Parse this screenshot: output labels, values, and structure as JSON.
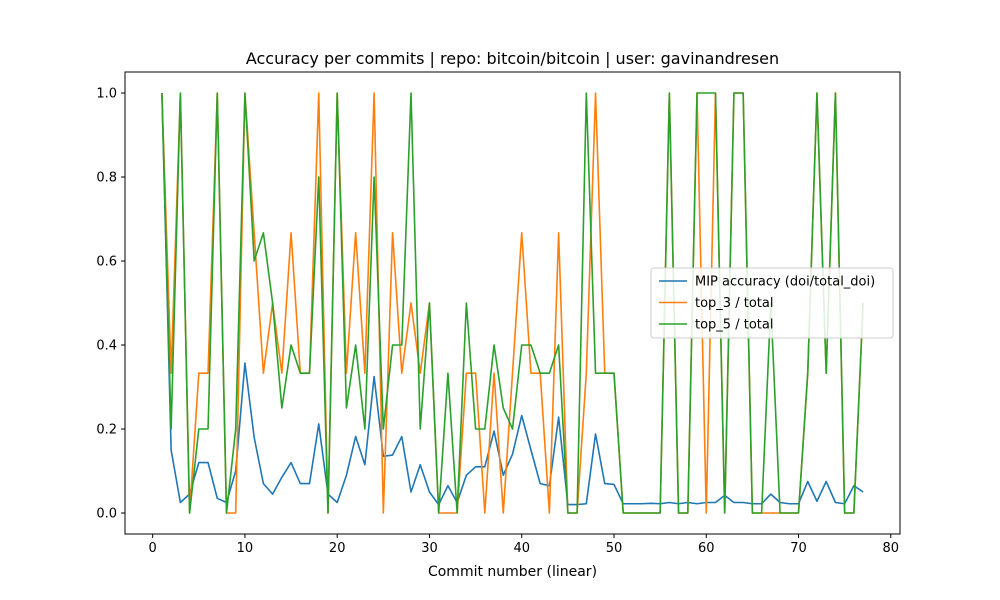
{
  "chart_data": {
    "type": "line",
    "title": "Accuracy per commits | repo: bitcoin/bitcoin | user: gavinandresen",
    "xlabel": "Commit number (linear)",
    "ylabel": "",
    "xlim": [
      -3,
      81
    ],
    "ylim": [
      -0.05,
      1.05
    ],
    "xticks": [
      0,
      10,
      20,
      30,
      40,
      50,
      60,
      70,
      80
    ],
    "yticks": [
      0.0,
      0.2,
      0.4,
      0.6,
      0.8,
      1.0
    ],
    "xtick_labels": [
      "0",
      "10",
      "20",
      "30",
      "40",
      "50",
      "60",
      "70",
      "80"
    ],
    "ytick_labels": [
      "0.0",
      "0.2",
      "0.4",
      "0.6",
      "0.8",
      "1.0"
    ],
    "grid": false,
    "legend_position": "center-right",
    "x": [
      1,
      2,
      3,
      4,
      5,
      6,
      7,
      8,
      9,
      10,
      11,
      12,
      13,
      14,
      15,
      16,
      17,
      18,
      19,
      20,
      21,
      22,
      23,
      24,
      25,
      26,
      27,
      28,
      29,
      30,
      31,
      32,
      33,
      34,
      35,
      36,
      37,
      38,
      39,
      40,
      41,
      42,
      43,
      44,
      45,
      46,
      47,
      48,
      49,
      50,
      51,
      52,
      53,
      54,
      55,
      56,
      57,
      58,
      59,
      60,
      61,
      62,
      63,
      64,
      65,
      66,
      67,
      68,
      69,
      70,
      71,
      72,
      73,
      74,
      75,
      76,
      77
    ],
    "series": [
      {
        "name": "MIP accuracy (doi/total_doi)",
        "color": "#1f77b4",
        "values": [
          1.0,
          0.15,
          0.025,
          0.045,
          0.12,
          0.12,
          0.035,
          0.025,
          0.1,
          0.357,
          0.18,
          0.07,
          0.045,
          0.085,
          0.12,
          0.07,
          0.07,
          0.212,
          0.045,
          0.025,
          0.09,
          0.182,
          0.115,
          0.325,
          0.135,
          0.138,
          0.182,
          0.05,
          0.115,
          0.05,
          0.02,
          0.065,
          0.025,
          0.09,
          0.11,
          0.11,
          0.195,
          0.09,
          0.14,
          0.232,
          0.15,
          0.07,
          0.065,
          0.228,
          0.02,
          0.02,
          0.022,
          0.188,
          0.07,
          0.068,
          0.022,
          0.022,
          0.022,
          0.023,
          0.022,
          0.025,
          0.022,
          0.025,
          0.022,
          0.025,
          0.025,
          0.042,
          0.025,
          0.025,
          0.022,
          0.022,
          0.045,
          0.025,
          0.022,
          0.022,
          0.075,
          0.028,
          0.075,
          0.025,
          0.022,
          0.065,
          0.05
        ]
      },
      {
        "name": "top_3 / total",
        "color": "#ff7f0e",
        "values": [
          1.0,
          0.333,
          1.0,
          0.0,
          0.333,
          0.333,
          1.0,
          0.0,
          0.0,
          1.0,
          0.667,
          0.333,
          0.5,
          0.333,
          0.667,
          0.333,
          0.333,
          1.0,
          0.0,
          1.0,
          0.333,
          0.667,
          0.333,
          1.0,
          0.0,
          0.667,
          0.333,
          0.5,
          0.333,
          0.5,
          0.0,
          0.0,
          0.0,
          0.333,
          0.333,
          0.0,
          0.333,
          0.0,
          0.333,
          0.667,
          0.333,
          0.333,
          0.0,
          0.667,
          0.0,
          0.0,
          0.333,
          1.0,
          0.333,
          0.333,
          0.0,
          0.0,
          0.0,
          0.0,
          0.0,
          1.0,
          0.0,
          0.0,
          1.0,
          0.0,
          1.0,
          0.0,
          1.0,
          1.0,
          0.0,
          0.0,
          0.0,
          0.0,
          0.0,
          0.0,
          0.333,
          1.0,
          0.333,
          1.0,
          0.0,
          0.0,
          0.5
        ]
      },
      {
        "name": "top_5 / total",
        "color": "#2ca02c",
        "values": [
          1.0,
          0.2,
          1.0,
          0.0,
          0.2,
          0.2,
          1.0,
          0.0,
          0.2,
          1.0,
          0.6,
          0.667,
          0.5,
          0.25,
          0.4,
          0.333,
          0.333,
          0.8,
          0.0,
          1.0,
          0.25,
          0.4,
          0.2,
          0.8,
          0.2,
          0.4,
          0.4,
          1.0,
          0.2,
          0.5,
          0.0,
          0.333,
          0.0,
          0.5,
          0.2,
          0.2,
          0.4,
          0.25,
          0.2,
          0.4,
          0.4,
          0.333,
          0.333,
          0.4,
          0.0,
          0.0,
          1.0,
          0.333,
          0.333,
          0.333,
          0.0,
          0.0,
          0.0,
          0.0,
          0.0,
          1.0,
          0.0,
          0.0,
          1.0,
          1.0,
          1.0,
          0.0,
          1.0,
          1.0,
          0.0,
          0.0,
          0.5,
          0.0,
          0.0,
          0.0,
          0.333,
          1.0,
          0.333,
          1.0,
          0.0,
          0.0,
          0.5
        ]
      }
    ]
  }
}
